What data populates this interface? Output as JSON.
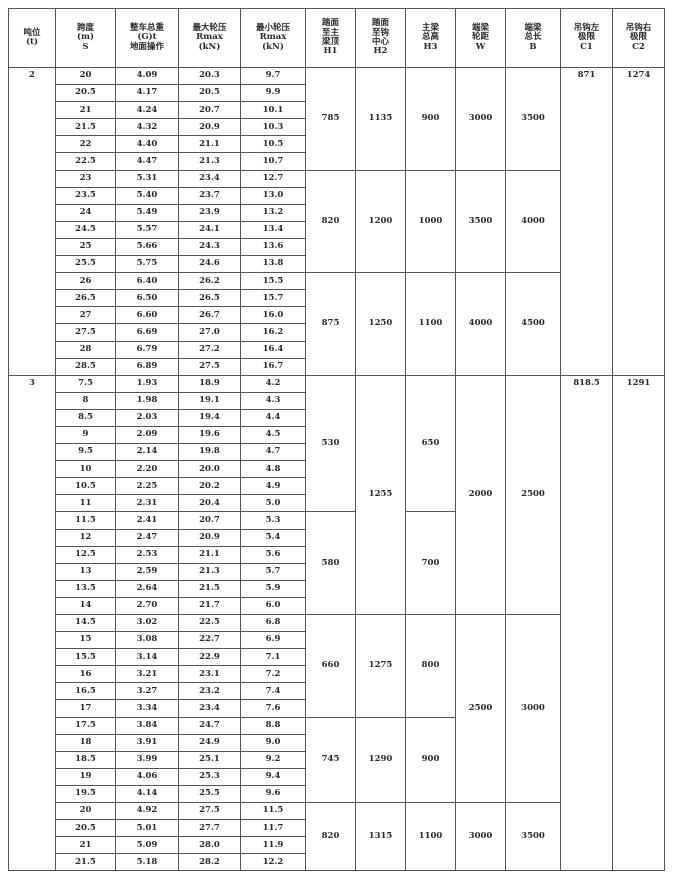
{
  "headers": [
    "吨位\n(t)",
    "跨度\n(m)\nS",
    "整车总重\n(G)t\n地面操作",
    "最大轮压\nRmax\n(kN)",
    "最小轮压\nRmax\n(kN)",
    "踏面\n至主\n梁顶\nH1",
    "踏面\n至钩\n中心\nH2",
    "主梁\n总高\nH3",
    "端梁\n轮距\nW",
    "端梁\n总长\nB",
    "吊钩左\n极限\nC1",
    "吊钩右\n极限\nC2"
  ],
  "sections": [
    {
      "tonnage": "2",
      "C1": "871",
      "C2": "1274",
      "rows": [
        [
          "20",
          "4.09",
          "20.3",
          "9.7"
        ],
        [
          "20.5",
          "4.17",
          "20.5",
          "9.9"
        ],
        [
          "21",
          "4.24",
          "20.7",
          "10.1"
        ],
        [
          "21.5",
          "4.32",
          "20.9",
          "10.3"
        ],
        [
          "22",
          "4.40",
          "21.1",
          "10.5"
        ],
        [
          "22.5",
          "4.47",
          "21.3",
          "10.7"
        ],
        [
          "23",
          "5.31",
          "23.4",
          "12.7"
        ],
        [
          "23.5",
          "5.40",
          "23.7",
          "13.0"
        ],
        [
          "24",
          "5.49",
          "23.9",
          "13.2"
        ],
        [
          "24.5",
          "5.57",
          "24.1",
          "13.4"
        ],
        [
          "25",
          "5.66",
          "24.3",
          "13.6"
        ],
        [
          "25.5",
          "5.75",
          "24.6",
          "13.8"
        ],
        [
          "26",
          "6.40",
          "26.2",
          "15.5"
        ],
        [
          "26.5",
          "6.50",
          "26.5",
          "15.7"
        ],
        [
          "27",
          "6.60",
          "26.7",
          "16.0"
        ],
        [
          "27.5",
          "6.69",
          "27.0",
          "16.2"
        ],
        [
          "28",
          "6.79",
          "27.2",
          "16.4"
        ],
        [
          "28.5",
          "6.89",
          "27.5",
          "16.7"
        ]
      ],
      "merged": {
        "H1": [
          {
            "value": "785",
            "rows": 6
          },
          {
            "value": "820",
            "rows": 6
          },
          {
            "value": "875",
            "rows": 6
          }
        ],
        "H2": [
          {
            "value": "1135",
            "rows": 6
          },
          {
            "value": "1200",
            "rows": 6
          },
          {
            "value": "1250",
            "rows": 6
          }
        ],
        "H3": [
          {
            "value": "900",
            "rows": 6
          },
          {
            "value": "1000",
            "rows": 6
          },
          {
            "value": "1100",
            "rows": 6
          }
        ],
        "W": [
          {
            "value": "3000",
            "rows": 6
          },
          {
            "value": "3500",
            "rows": 6
          },
          {
            "value": "4000",
            "rows": 6
          }
        ],
        "B": [
          {
            "value": "3500",
            "rows": 6
          },
          {
            "value": "4000",
            "rows": 6
          },
          {
            "value": "4500",
            "rows": 6
          }
        ]
      }
    },
    {
      "tonnage": "3",
      "C1": "818.5",
      "C2": "1291",
      "rows": [
        [
          "7.5",
          "1.93",
          "18.9",
          "4.2"
        ],
        [
          "8",
          "1.98",
          "19.1",
          "4.3"
        ],
        [
          "8.5",
          "2.03",
          "19.4",
          "4.4"
        ],
        [
          "9",
          "2.09",
          "19.6",
          "4.5"
        ],
        [
          "9.5",
          "2.14",
          "19.8",
          "4.7"
        ],
        [
          "10",
          "2.20",
          "20.0",
          "4.8"
        ],
        [
          "10.5",
          "2.25",
          "20.2",
          "4.9"
        ],
        [
          "11",
          "2.31",
          "20.4",
          "5.0"
        ],
        [
          "11.5",
          "2.41",
          "20.7",
          "5.3"
        ],
        [
          "12",
          "2.47",
          "20.9",
          "5.4"
        ],
        [
          "12.5",
          "2.53",
          "21.1",
          "5.6"
        ],
        [
          "13",
          "2.59",
          "21.3",
          "5.7"
        ],
        [
          "13.5",
          "2.64",
          "21.5",
          "5.9"
        ],
        [
          "14",
          "2.70",
          "21.7",
          "6.0"
        ],
        [
          "14.5",
          "3.02",
          "22.5",
          "6.8"
        ],
        [
          "15",
          "3.08",
          "22.7",
          "6.9"
        ],
        [
          "15.5",
          "3.14",
          "22.9",
          "7.1"
        ],
        [
          "16",
          "3.21",
          "23.1",
          "7.2"
        ],
        [
          "16.5",
          "3.27",
          "23.2",
          "7.4"
        ],
        [
          "17",
          "3.34",
          "23.4",
          "7.6"
        ],
        [
          "17.5",
          "3.84",
          "24.7",
          "8.8"
        ],
        [
          "18",
          "3.91",
          "24.9",
          "9.0"
        ],
        [
          "18.5",
          "3.99",
          "25.1",
          "9.2"
        ],
        [
          "19",
          "4.06",
          "25.3",
          "9.4"
        ],
        [
          "19.5",
          "4.14",
          "25.5",
          "9.6"
        ],
        [
          "20",
          "4.92",
          "27.5",
          "11.5"
        ],
        [
          "20.5",
          "5.01",
          "27.7",
          "11.7"
        ],
        [
          "21",
          "5.09",
          "28.0",
          "11.9"
        ],
        [
          "21.5",
          "5.18",
          "28.2",
          "12.2"
        ]
      ],
      "merged": {
        "H1": [
          {
            "value": "530",
            "rows": 8
          },
          {
            "value": "580",
            "rows": 6
          },
          {
            "value": "660",
            "rows": 6
          },
          {
            "value": "745",
            "rows": 5
          },
          {
            "value": "820",
            "rows": 4
          }
        ],
        "H2": [
          {
            "value": "1255",
            "rows": 14
          },
          {
            "value": "1275",
            "rows": 6
          },
          {
            "value": "1290",
            "rows": 5
          },
          {
            "value": "1315",
            "rows": 4
          }
        ],
        "H3": [
          {
            "value": "650",
            "rows": 8
          },
          {
            "value": "700",
            "rows": 6
          },
          {
            "value": "800",
            "rows": 6
          },
          {
            "value": "900",
            "rows": 5
          },
          {
            "value": "1100",
            "rows": 4
          }
        ],
        "W": [
          {
            "value": "2000",
            "rows": 14
          },
          {
            "value": "2500",
            "rows": 11
          },
          {
            "value": "3000",
            "rows": 4
          }
        ],
        "B": [
          {
            "value": "2500",
            "rows": 14
          },
          {
            "value": "3000",
            "rows": 11
          },
          {
            "value": "3500",
            "rows": 4
          }
        ]
      }
    }
  ]
}
